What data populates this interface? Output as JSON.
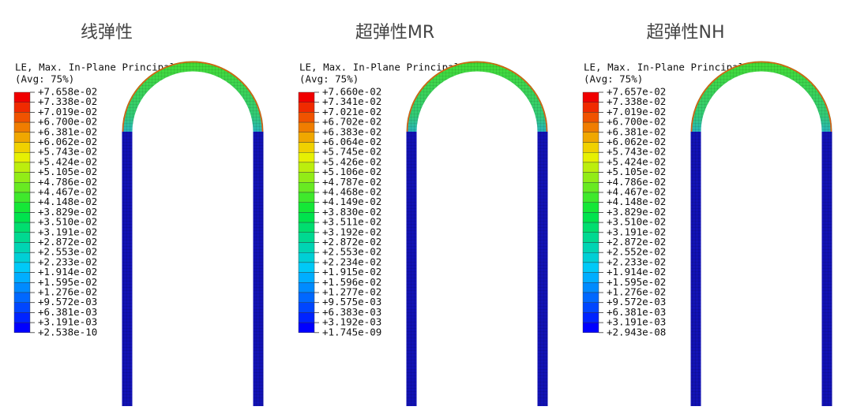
{
  "panels": [
    {
      "title": "线弹性",
      "legend": {
        "title": "LE, Max. In-Plane Principal",
        "subtitle": "(Avg: 75%)",
        "labels": [
          "+7.658e-02",
          "+7.338e-02",
          "+7.019e-02",
          "+6.700e-02",
          "+6.381e-02",
          "+6.062e-02",
          "+5.743e-02",
          "+5.424e-02",
          "+5.105e-02",
          "+4.786e-02",
          "+4.467e-02",
          "+4.148e-02",
          "+3.829e-02",
          "+3.510e-02",
          "+3.191e-02",
          "+2.872e-02",
          "+2.553e-02",
          "+2.233e-02",
          "+1.914e-02",
          "+1.595e-02",
          "+1.276e-02",
          "+9.572e-03",
          "+6.381e-03",
          "+3.191e-03",
          "+2.538e-10"
        ]
      }
    },
    {
      "title": "超弹性MR",
      "legend": {
        "title": "LE, Max. In-Plane Principal",
        "subtitle": "(Avg: 75%)",
        "labels": [
          "+7.660e-02",
          "+7.341e-02",
          "+7.021e-02",
          "+6.702e-02",
          "+6.383e-02",
          "+6.064e-02",
          "+5.745e-02",
          "+5.426e-02",
          "+5.106e-02",
          "+4.787e-02",
          "+4.468e-02",
          "+4.149e-02",
          "+3.830e-02",
          "+3.511e-02",
          "+3.192e-02",
          "+2.872e-02",
          "+2.553e-02",
          "+2.234e-02",
          "+1.915e-02",
          "+1.596e-02",
          "+1.277e-02",
          "+9.575e-03",
          "+6.383e-03",
          "+3.192e-03",
          "+1.745e-09"
        ]
      }
    },
    {
      "title": "超弹性NH",
      "legend": {
        "title": "LE, Max. In-Plane Principal",
        "subtitle": "(Avg: 75%)",
        "labels": [
          "+7.657e-02",
          "+7.338e-02",
          "+7.019e-02",
          "+6.700e-02",
          "+6.381e-02",
          "+6.062e-02",
          "+5.743e-02",
          "+5.424e-02",
          "+5.105e-02",
          "+4.786e-02",
          "+4.467e-02",
          "+4.148e-02",
          "+3.829e-02",
          "+3.510e-02",
          "+3.191e-02",
          "+2.872e-02",
          "+2.552e-02",
          "+2.233e-02",
          "+1.914e-02",
          "+1.595e-02",
          "+1.276e-02",
          "+9.572e-03",
          "+6.381e-03",
          "+3.191e-03",
          "+2.943e-08"
        ]
      }
    }
  ]
}
